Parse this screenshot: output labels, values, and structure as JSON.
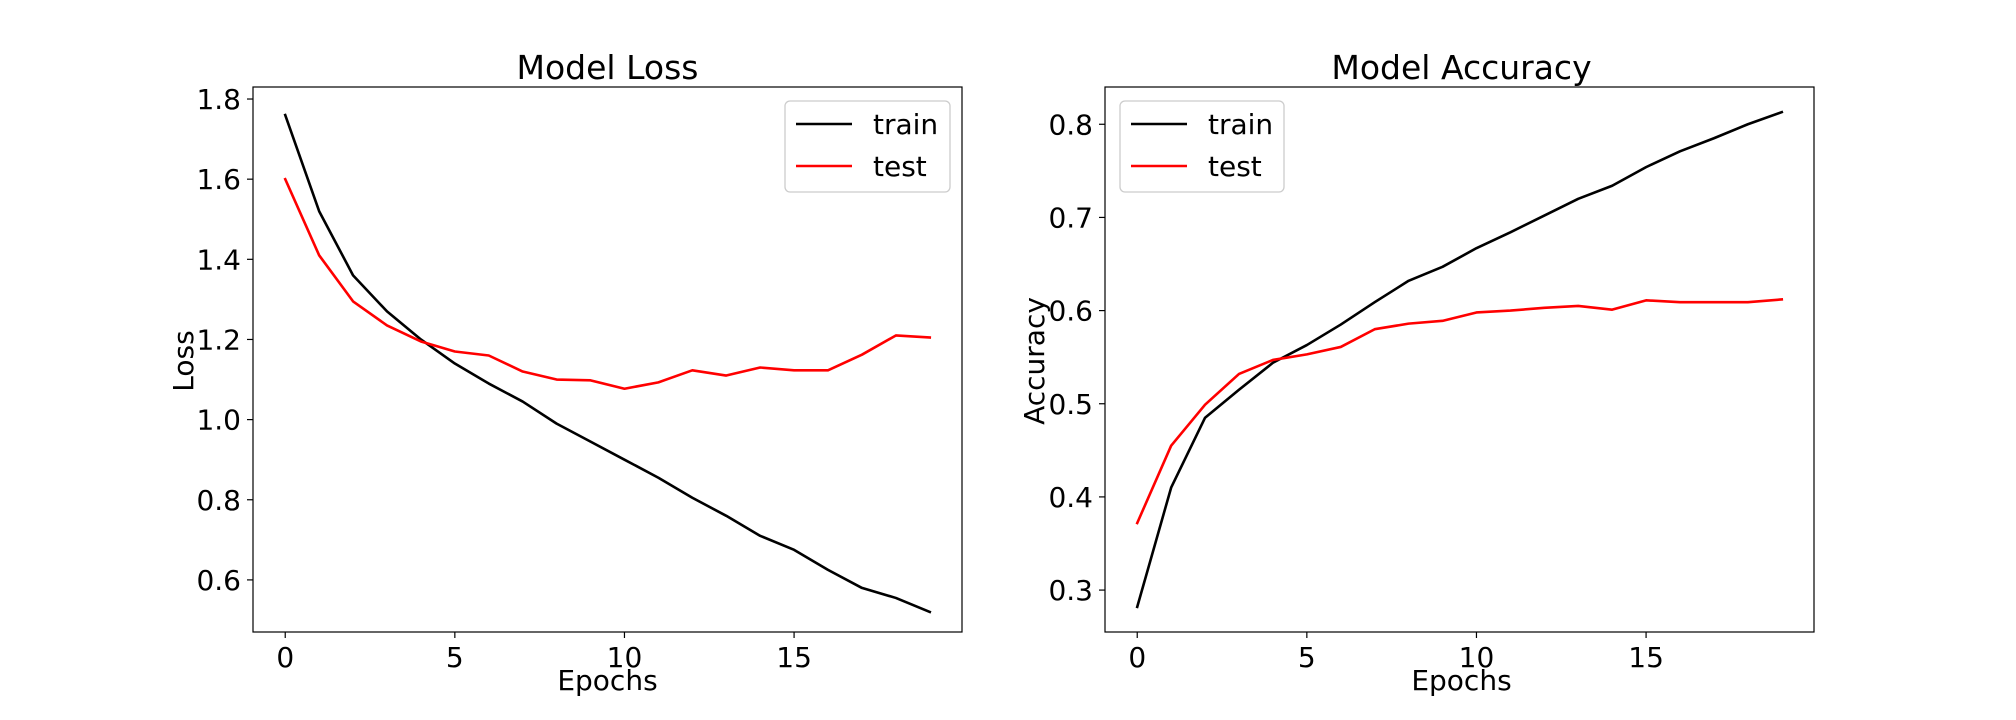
{
  "chart_data": [
    {
      "type": "line",
      "title": "Model Loss",
      "xlabel": "Epochs",
      "ylabel": "Loss",
      "xlim": [
        -0.95,
        19.95
      ],
      "ylim": [
        0.47,
        1.83
      ],
      "xticks": [
        0,
        5,
        10,
        15
      ],
      "yticks": [
        0.6,
        0.8,
        1.0,
        1.2,
        1.4,
        1.6,
        1.8
      ],
      "xtick_labels": [
        "0",
        "5",
        "10",
        "15"
      ],
      "ytick_labels": [
        "0.6",
        "0.8",
        "1.0",
        "1.2",
        "1.4",
        "1.6",
        "1.8"
      ],
      "grid": false,
      "legend_position": "upper right",
      "x": [
        0,
        1,
        2,
        3,
        4,
        5,
        6,
        7,
        8,
        9,
        10,
        11,
        12,
        13,
        14,
        15,
        16,
        17,
        18,
        19
      ],
      "series": [
        {
          "name": "train",
          "color": "#000000",
          "values": [
            1.76,
            1.52,
            1.36,
            1.27,
            1.2,
            1.14,
            1.09,
            1.045,
            0.99,
            0.945,
            0.9,
            0.855,
            0.805,
            0.76,
            0.71,
            0.675,
            0.625,
            0.58,
            0.555,
            0.52
          ]
        },
        {
          "name": "test",
          "color": "#ff0000",
          "values": [
            1.6,
            1.41,
            1.295,
            1.235,
            1.195,
            1.17,
            1.16,
            1.12,
            1.1,
            1.098,
            1.077,
            1.093,
            1.123,
            1.11,
            1.13,
            1.123,
            1.123,
            1.162,
            1.21,
            1.205
          ]
        }
      ]
    },
    {
      "type": "line",
      "title": "Model Accuracy",
      "xlabel": "Epochs",
      "ylabel": "Accuracy",
      "xlim": [
        -0.95,
        19.95
      ],
      "ylim": [
        0.255,
        0.84
      ],
      "xticks": [
        0,
        5,
        10,
        15
      ],
      "yticks": [
        0.3,
        0.4,
        0.5,
        0.6,
        0.7,
        0.8
      ],
      "xtick_labels": [
        "0",
        "5",
        "10",
        "15"
      ],
      "ytick_labels": [
        "0.3",
        "0.4",
        "0.5",
        "0.6",
        "0.7",
        "0.8"
      ],
      "grid": false,
      "legend_position": "upper left",
      "x": [
        0,
        1,
        2,
        3,
        4,
        5,
        6,
        7,
        8,
        9,
        10,
        11,
        12,
        13,
        14,
        15,
        16,
        17,
        18,
        19
      ],
      "series": [
        {
          "name": "train",
          "color": "#000000",
          "values": [
            0.282,
            0.41,
            0.485,
            0.515,
            0.544,
            0.563,
            0.585,
            0.609,
            0.632,
            0.647,
            0.667,
            0.684,
            0.702,
            0.72,
            0.734,
            0.754,
            0.771,
            0.785,
            0.8,
            0.813
          ]
        },
        {
          "name": "test",
          "color": "#ff0000",
          "values": [
            0.372,
            0.455,
            0.499,
            0.532,
            0.547,
            0.553,
            0.561,
            0.58,
            0.586,
            0.589,
            0.598,
            0.6,
            0.603,
            0.605,
            0.601,
            0.611,
            0.609,
            0.609,
            0.609,
            0.612
          ]
        }
      ]
    }
  ]
}
